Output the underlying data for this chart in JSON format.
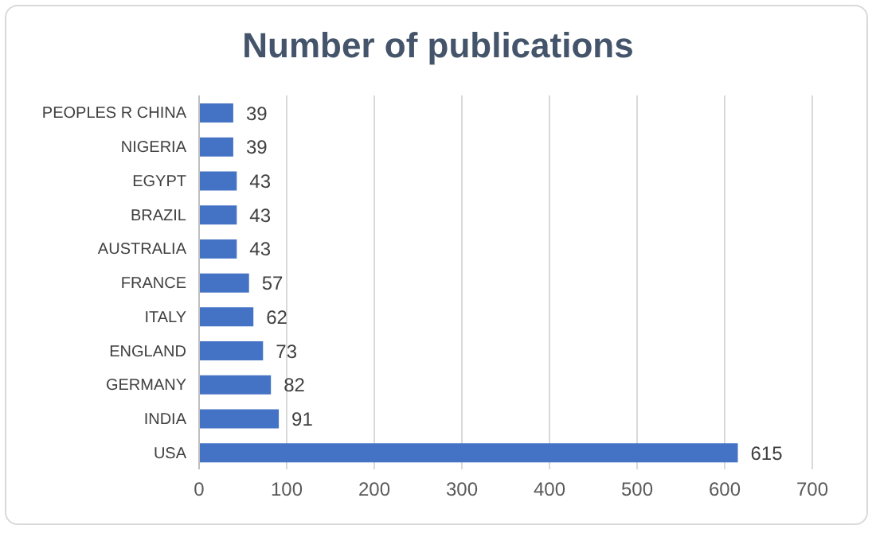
{
  "chart_data": {
    "type": "bar",
    "orientation": "horizontal",
    "title": "Number of publications",
    "categories": [
      "PEOPLES R CHINA",
      "NIGERIA",
      "EGYPT",
      "BRAZIL",
      "AUSTRALIA",
      "FRANCE",
      "ITALY",
      "ENGLAND",
      "GERMANY",
      "INDIA",
      "USA"
    ],
    "values": [
      39,
      39,
      43,
      43,
      43,
      57,
      62,
      73,
      82,
      91,
      615
    ],
    "color": "#4472c4",
    "xlim": [
      0,
      700
    ],
    "xticks": [
      0,
      100,
      200,
      300,
      400,
      500,
      600,
      700
    ],
    "grid": "x",
    "data_labels": true
  }
}
